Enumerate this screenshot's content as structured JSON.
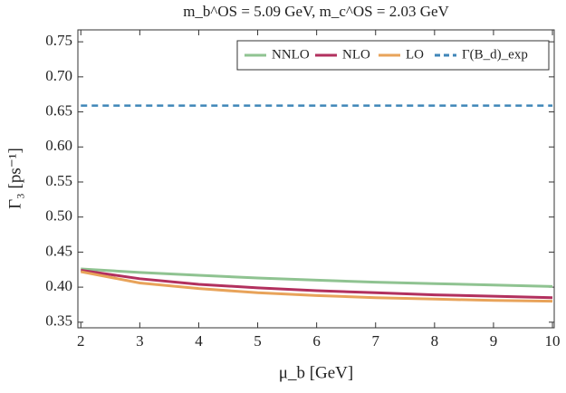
{
  "chart_data": {
    "type": "line",
    "title": "m_b^OS = 5.09 GeV, m_c^OS = 2.03 GeV",
    "x_label": "μ_b [GeV]",
    "y_label": "Γ₃ [ps⁻¹]",
    "x": [
      2,
      3,
      4,
      5,
      6,
      7,
      8,
      9,
      10
    ],
    "series": [
      {
        "name": "NNLO",
        "color": "#8fc391",
        "values": [
          0.426,
          0.421,
          0.417,
          0.413,
          0.41,
          0.407,
          0.405,
          0.403,
          0.401
        ]
      },
      {
        "name": "NLO",
        "color": "#b2305e",
        "values": [
          0.424,
          0.412,
          0.404,
          0.399,
          0.395,
          0.392,
          0.389,
          0.387,
          0.385
        ]
      },
      {
        "name": "LO",
        "color": "#e8a35a",
        "values": [
          0.422,
          0.406,
          0.398,
          0.392,
          0.388,
          0.385,
          0.383,
          0.381,
          0.38
        ]
      },
      {
        "name": "Γ(B_d)_exp",
        "color": "#3f86b8",
        "linestyle": "dashed",
        "values": [
          0.659,
          0.659,
          0.659,
          0.659,
          0.659,
          0.659,
          0.659,
          0.659,
          0.659
        ]
      }
    ],
    "xlim": [
      1.95,
      10.03
    ],
    "ylim": [
      0.342,
      0.767
    ],
    "xticks": [
      2,
      3,
      4,
      5,
      6,
      7,
      8,
      9,
      10
    ],
    "yticks": [
      0.35,
      {
        "value": 0.4,
        "label": "0.40"
      },
      0.45,
      {
        "value": 0.5,
        "label": "0.50"
      },
      0.55,
      {
        "value": 0.6,
        "label": "0.60"
      },
      0.65,
      {
        "value": 0.7,
        "label": "0.70"
      },
      0.75
    ],
    "legend": "upper right",
    "grid": false
  }
}
